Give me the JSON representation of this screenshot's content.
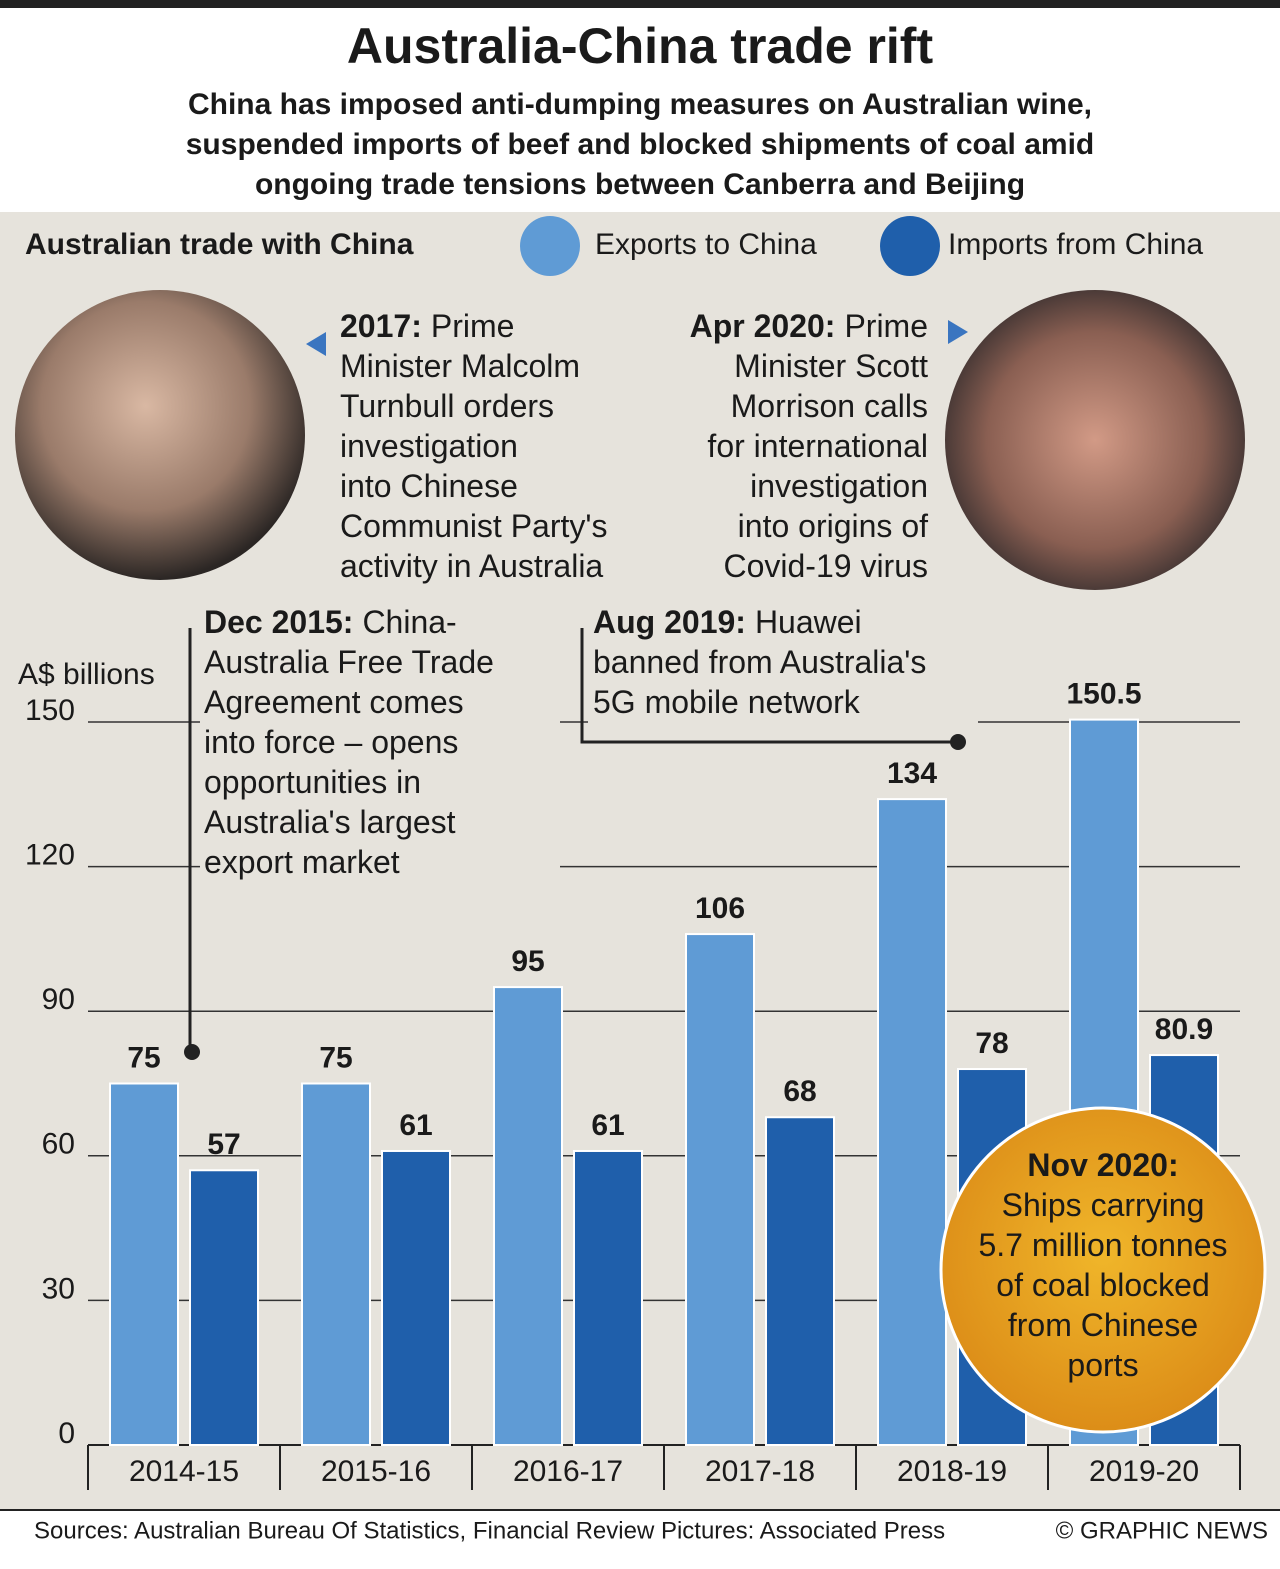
{
  "chart_data": {
    "type": "bar",
    "title": "Australia-China trade rift",
    "subtitle": [
      "China has imposed anti-dumping measures on Australian wine,",
      "suspended imports of beef and blocked shipments of coal amid",
      "ongoing trade tensions between Canberra and Beijing"
    ],
    "legend_title": "Australian trade with China",
    "y_label": "A$ billions",
    "categories": [
      "2014-15",
      "2015-16",
      "2016-17",
      "2017-18",
      "2018-19",
      "2019-20"
    ],
    "series": [
      {
        "name": "Exports to China",
        "color": "#5f9bd5",
        "values": [
          75,
          75,
          95,
          106,
          134,
          150.5
        ]
      },
      {
        "name": "Imports from China",
        "color": "#1f5fab",
        "values": [
          57,
          61,
          61,
          68,
          78,
          80.9
        ]
      }
    ],
    "ylim": [
      0,
      150
    ],
    "yticks": [
      0,
      30,
      60,
      90,
      120,
      150
    ],
    "grid": true,
    "annotations": [
      {
        "date": "2017:",
        "lines": [
          "Prime",
          "Minister Malcolm",
          "Turnbull orders",
          "investigation",
          "into Chinese",
          "Communist Party's",
          "activity in Australia"
        ]
      },
      {
        "date": "Apr 2020:",
        "lines": [
          "Prime",
          "Minister Scott",
          "Morrison calls",
          "for international",
          "investigation",
          "into origins of",
          "Covid-19 virus"
        ]
      },
      {
        "date": "Dec 2015:",
        "lines": [
          "China-",
          "Australia Free Trade",
          "Agreement comes",
          "into force – opens",
          "opportunities in",
          "Australia's largest",
          "export market"
        ]
      },
      {
        "date": "Aug 2019:",
        "lines": [
          "Huawei",
          "banned from Australia's",
          "5G mobile network"
        ]
      },
      {
        "date": "Nov 2020:",
        "lines": [
          "Ships carrying",
          "5.7 million tonnes",
          "of coal blocked",
          "from Chinese",
          "ports"
        ]
      }
    ],
    "sources": "Sources: Australian Bureau Of Statistics, Financial Review  Pictures: Associated Press",
    "credit": "© GRAPHIC NEWS"
  }
}
